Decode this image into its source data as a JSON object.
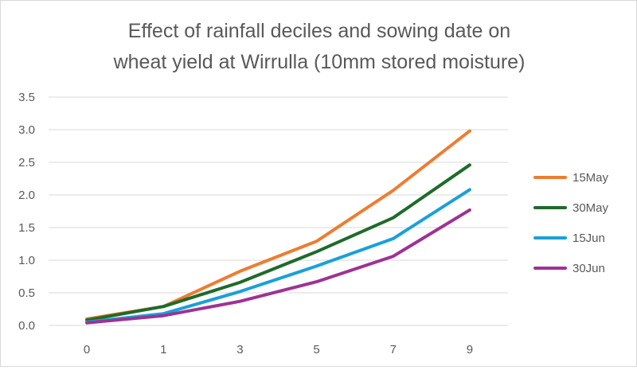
{
  "chart_data": {
    "type": "line",
    "title_lines": [
      "Effect of rainfall deciles and sowing date on",
      "wheat yield at Wirrulla (10mm stored moisture)"
    ],
    "categories": [
      "0",
      "1",
      "3",
      "5",
      "7",
      "9"
    ],
    "series": [
      {
        "name": "15May",
        "color": "#ED7D31",
        "values": [
          0.1,
          0.29,
          0.83,
          1.29,
          2.07,
          2.98
        ]
      },
      {
        "name": "30May",
        "color": "#1E6B2A",
        "values": [
          0.08,
          0.29,
          0.66,
          1.13,
          1.65,
          2.46
        ]
      },
      {
        "name": "15Jun",
        "color": "#1AA0D9",
        "values": [
          0.05,
          0.18,
          0.52,
          0.91,
          1.33,
          2.08
        ]
      },
      {
        "name": "30Jun",
        "color": "#9E3294",
        "values": [
          0.04,
          0.15,
          0.37,
          0.67,
          1.06,
          1.77
        ]
      }
    ],
    "y_ticks": [
      "0.0",
      "0.5",
      "1.0",
      "1.5",
      "2.0",
      "2.5",
      "3.0",
      "3.5"
    ],
    "ylim": [
      0,
      3.5
    ],
    "xlabel": "",
    "ylabel": "",
    "grid": true,
    "legend_position": "right"
  }
}
